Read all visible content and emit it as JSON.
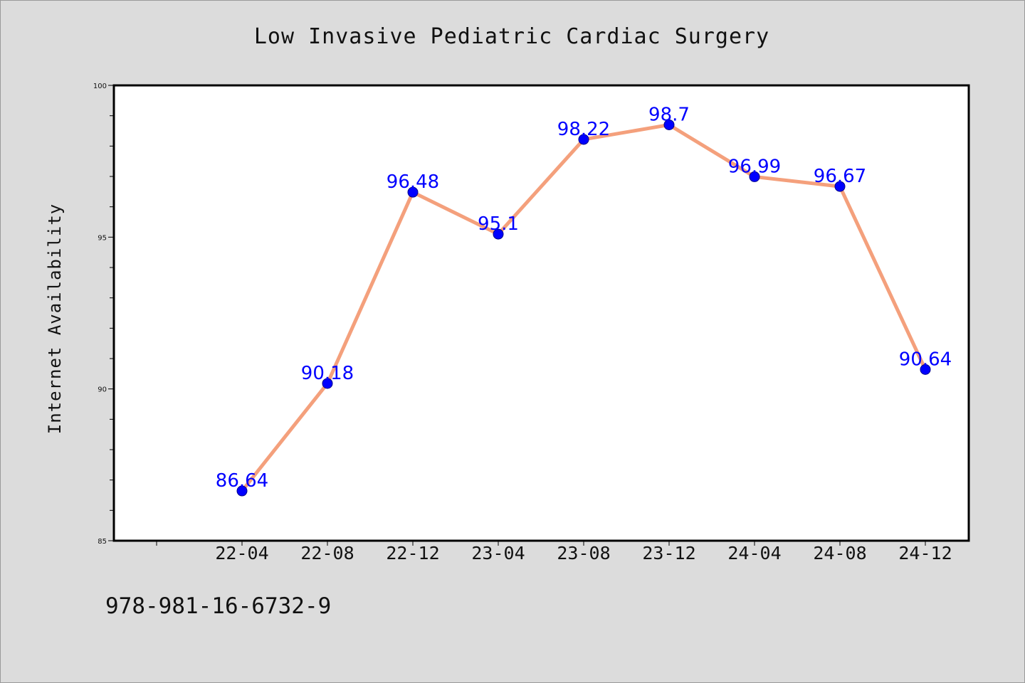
{
  "chart_data": {
    "type": "line",
    "title": "Low Invasive Pediatric Cardiac Surgery",
    "xlabel": "",
    "ylabel": "Internet Availability",
    "categories": [
      "22-04",
      "22-08",
      "22-12",
      "23-04",
      "23-08",
      "23-12",
      "24-04",
      "24-08",
      "24-12"
    ],
    "series": [
      {
        "values": [
          86.64,
          90.18,
          96.48,
          95.1,
          98.22,
          98.7,
          96.99,
          96.67,
          90.64
        ],
        "labels": [
          "86.64",
          "90.18",
          "96.48",
          "95.1",
          "98.22",
          "98.7",
          "96.99",
          "96.67",
          "90.64"
        ]
      }
    ],
    "ylim": [
      85,
      100
    ],
    "yticks": [
      "85",
      "90",
      "95",
      "100"
    ],
    "grid": false,
    "legend": "none",
    "colors": {
      "line": "#f4a07c",
      "marker": "#0000ff",
      "data_label": "#0000ff",
      "background": "#dcdcdc",
      "plot_background": "#ffffff"
    }
  },
  "footer": {
    "code": "978-981-16-6732-9"
  }
}
